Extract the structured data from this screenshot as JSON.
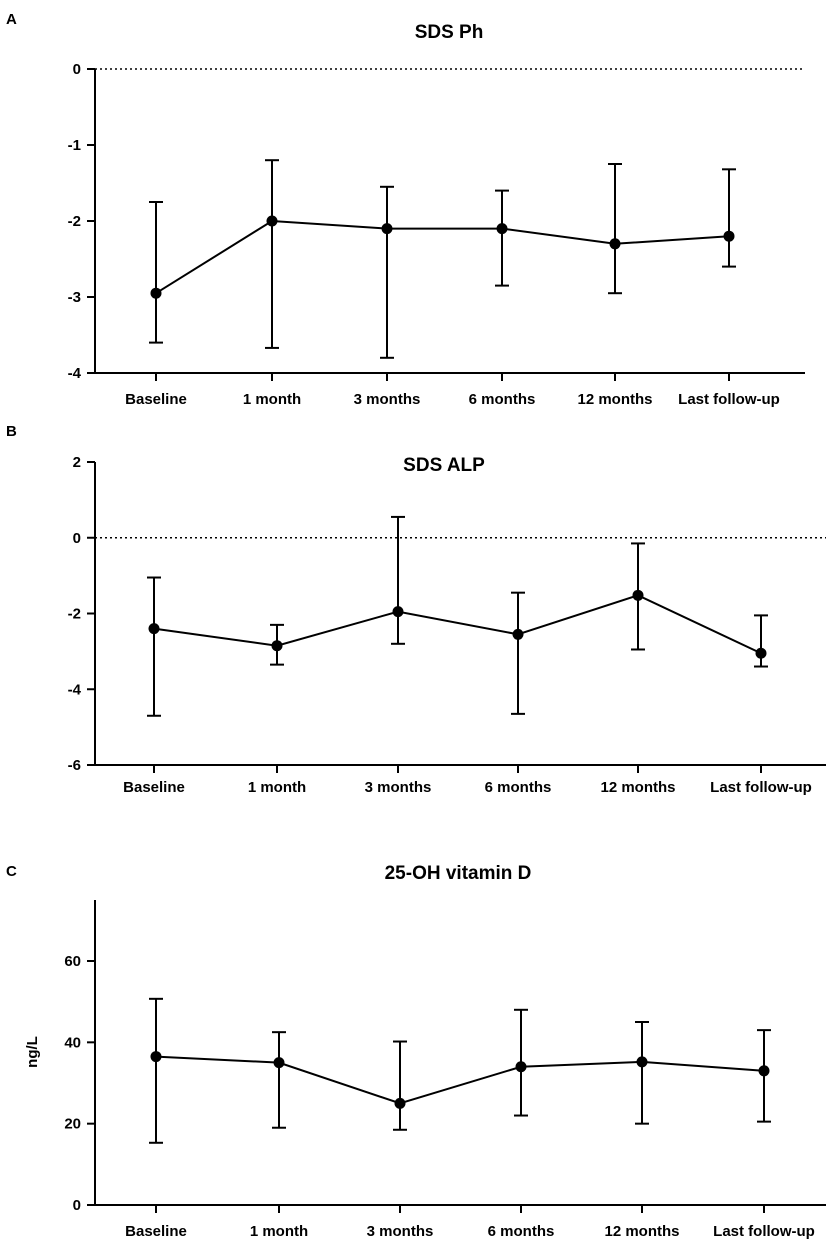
{
  "chart_data": [
    {
      "panel": "A",
      "type": "line",
      "title": "SDS Ph",
      "xlabel": "",
      "ylabel": "",
      "ylim": [
        -4,
        0
      ],
      "yticks": [
        0,
        -1,
        -2,
        -3,
        -4
      ],
      "ytick_labels": [
        "0",
        "-1",
        "-2",
        "-3",
        "-4"
      ],
      "reference_line": 0,
      "categories": [
        "Baseline",
        "1 month",
        "3 months",
        "6 months",
        "12 months",
        "Last follow-up"
      ],
      "values": [
        -2.95,
        -2.0,
        -2.1,
        -2.1,
        -2.3,
        -2.2
      ],
      "err_high": [
        -1.75,
        -1.2,
        -1.55,
        -1.6,
        -1.25,
        -1.32
      ],
      "err_low": [
        -3.6,
        -3.67,
        -3.8,
        -2.85,
        -2.95,
        -2.6
      ]
    },
    {
      "panel": "B",
      "type": "line",
      "title": "SDS ALP",
      "xlabel": "",
      "ylabel": "",
      "ylim": [
        -6,
        2
      ],
      "yticks": [
        2,
        0,
        -2,
        -4,
        -6
      ],
      "ytick_labels": [
        "2",
        "0",
        "-2",
        "-4",
        "-6"
      ],
      "reference_line": 0,
      "categories": [
        "Baseline",
        "1 month",
        "3 months",
        "6 months",
        "12 months",
        "Last follow-up"
      ],
      "values": [
        -2.4,
        -2.85,
        -1.95,
        -2.55,
        -1.52,
        -3.05
      ],
      "err_high": [
        -1.05,
        -2.3,
        0.55,
        -1.45,
        -0.15,
        -2.05
      ],
      "err_low": [
        -4.7,
        -3.35,
        -2.8,
        -4.65,
        -2.95,
        -3.4
      ]
    },
    {
      "panel": "C",
      "type": "line",
      "title": "25-OH vitamin D",
      "xlabel": "",
      "ylabel": "ng/L",
      "ylim": [
        0,
        75
      ],
      "yticks": [
        60,
        40,
        20,
        0
      ],
      "ytick_labels": [
        "60",
        "40",
        "20",
        "0"
      ],
      "reference_line": null,
      "categories": [
        "Baseline",
        "1 month",
        "3 months",
        "6 months",
        "12 months",
        "Last follow-up"
      ],
      "values": [
        36.5,
        35.0,
        25.0,
        34.0,
        35.2,
        33.0
      ],
      "err_high": [
        50.7,
        42.5,
        40.2,
        48.0,
        45.0,
        43.0
      ],
      "err_low": [
        15.3,
        19.0,
        18.5,
        22.0,
        20.0,
        20.5
      ]
    }
  ]
}
